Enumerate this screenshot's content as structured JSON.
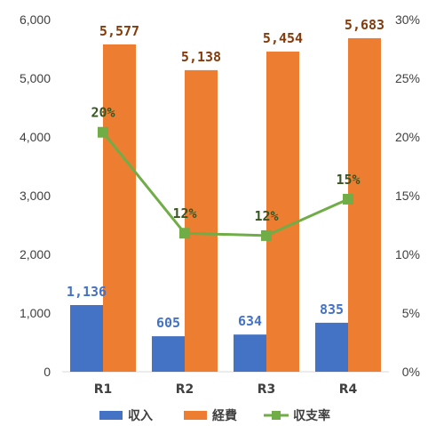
{
  "chart_data": {
    "type": "bar",
    "categories": [
      "R1",
      "R2",
      "R3",
      "R4"
    ],
    "series": [
      {
        "name": "収入",
        "type": "bar",
        "axis": "left",
        "color": "#4472c4",
        "values": [
          1136,
          605,
          634,
          835
        ],
        "labels": [
          "1,136",
          "605",
          "634",
          "835"
        ]
      },
      {
        "name": "経費",
        "type": "bar",
        "axis": "left",
        "color": "#ed7d31",
        "values": [
          5577,
          5138,
          5454,
          5683
        ],
        "labels": [
          "5,577",
          "5,138",
          "5,454",
          "5,683"
        ]
      },
      {
        "name": "収支率",
        "type": "line",
        "axis": "right",
        "color": "#70ad47",
        "values": [
          20.4,
          11.8,
          11.6,
          14.7
        ],
        "labels": [
          "20%",
          "12%",
          "12%",
          "15%"
        ]
      }
    ],
    "y_left": {
      "lim": [
        0,
        6000
      ],
      "ticks": [
        "0",
        "1,000",
        "2,000",
        "3,000",
        "4,000",
        "5,000",
        "6,000"
      ]
    },
    "y_right": {
      "lim": [
        0,
        30
      ],
      "ticks": [
        "0%",
        "5%",
        "10%",
        "15%",
        "20%",
        "25%",
        "30%"
      ]
    },
    "grid": false,
    "legend_position": "bottom",
    "label_colors": {
      "income": "#4472c4",
      "expense": "#843c0c",
      "ratio": "#375623"
    }
  }
}
